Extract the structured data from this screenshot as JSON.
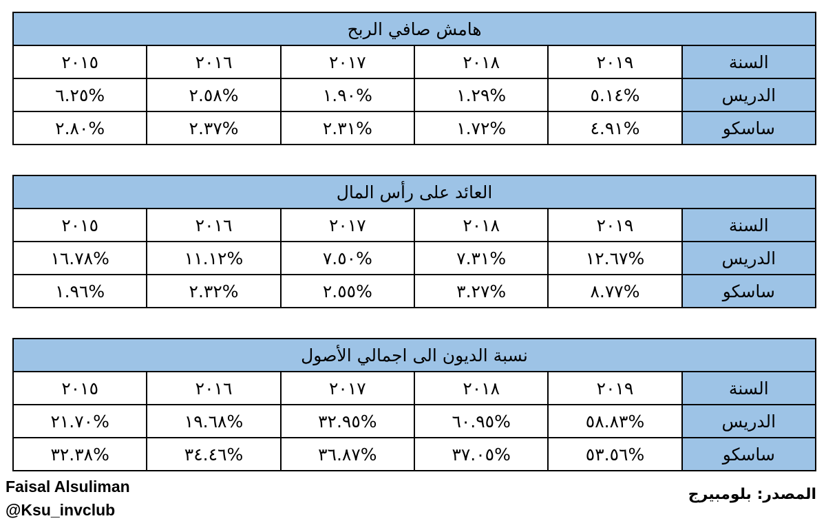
{
  "tables": [
    {
      "title": "هامش صافي الربح",
      "rows": [
        [
          "السنة",
          "٢٠١٩",
          "٢٠١٨",
          "٢٠١٧",
          "٢٠١٦",
          "٢٠١٥"
        ],
        [
          "الدريس",
          "٥.١٤%",
          "١.٢٩%",
          "١.٩٠%",
          "٢.٥٨%",
          "٦.٢٥%"
        ],
        [
          "ساسكو",
          "٤.٩١%",
          "١.٧٢%",
          "٢.٣١%",
          "٢.٣٧%",
          "٢.٨٠%"
        ]
      ]
    },
    {
      "title": "العائد على رأس المال",
      "rows": [
        [
          "السنة",
          "٢٠١٩",
          "٢٠١٨",
          "٢٠١٧",
          "٢٠١٦",
          "٢٠١٥"
        ],
        [
          "الدريس",
          "١٢.٦٧%",
          "٧.٣١%",
          "٧.٥٠%",
          "١١.١٢%",
          "١٦.٧٨%"
        ],
        [
          "ساسكو",
          "٨.٧٧%",
          "٣.٢٧%",
          "٢.٥٥%",
          "٢.٣٢%",
          "١.٩٦%"
        ]
      ]
    },
    {
      "title": "نسبة الديون الى اجمالي الأصول",
      "rows": [
        [
          "السنة",
          "٢٠١٩",
          "٢٠١٨",
          "٢٠١٧",
          "٢٠١٦",
          "٢٠١٥"
        ],
        [
          "الدريس",
          "٥٨.٨٣%",
          "٦٠.٩٥%",
          "٣٢.٩٥%",
          "١٩.٦٨%",
          "٢١.٧٠%"
        ],
        [
          "ساسكو",
          "٥٣.٥٦%",
          "٣٧.٠٥%",
          "٣٦.٨٧%",
          "٣٤.٤٦%",
          "٣٢.٣٨%"
        ]
      ]
    }
  ],
  "footer": {
    "author": "Faisal Alsuliman",
    "handle": "@Ksu_invclub",
    "source": "المصدر: بلومبيرج"
  }
}
